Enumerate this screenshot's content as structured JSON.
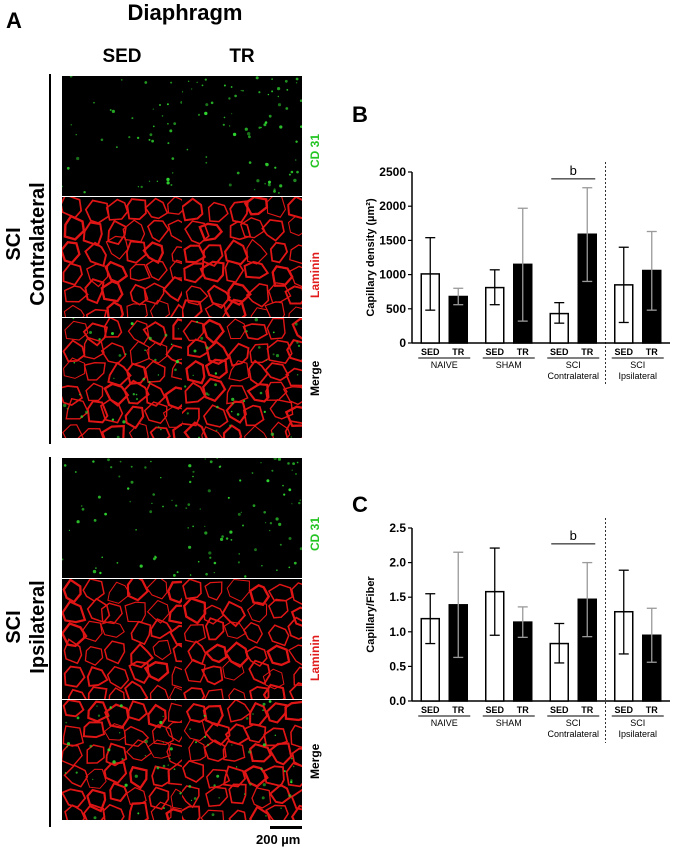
{
  "panel_a": {
    "letter": "A",
    "title": "Diaphragm",
    "col_headers": [
      "SED",
      "TR"
    ],
    "groups": [
      {
        "label_line1": "SCI",
        "label_line2": "Contralateral"
      },
      {
        "label_line1": "SCI",
        "label_line2": "Ipsilateral"
      }
    ],
    "rows": [
      "CD 31",
      "Laminin",
      "Merge"
    ],
    "row_colors": {
      "CD 31": "#22c422",
      "Laminin": "#e11b1b",
      "Merge": "#000000"
    },
    "scale_bar": "200 µm"
  },
  "panel_b": {
    "letter": "B"
  },
  "panel_c": {
    "letter": "C"
  },
  "chart_data": [
    {
      "type": "bar",
      "ylabel": "Capillary density (µm²)",
      "ylim": [
        0,
        2500
      ],
      "yticks": [
        0,
        500,
        1000,
        1500,
        2000,
        2500
      ],
      "categories": [
        "SED",
        "TR",
        "SED",
        "TR",
        "SED",
        "TR",
        "SED",
        "TR"
      ],
      "groups": [
        {
          "line1": "NAIVE",
          "line2": ""
        },
        {
          "line1": "SHAM",
          "line2": ""
        },
        {
          "line1": "SCI",
          "line2": "Contralateral"
        },
        {
          "line1": "SCI",
          "line2": "Ipsilateral"
        }
      ],
      "values": [
        1010,
        680,
        810,
        1150,
        430,
        1590,
        850,
        1060
      ],
      "err_low": [
        480,
        560,
        560,
        320,
        290,
        900,
        300,
        480
      ],
      "err_high": [
        1540,
        800,
        1070,
        1970,
        590,
        2270,
        1400,
        1630
      ],
      "bar_fill": [
        "white",
        "black",
        "white",
        "black",
        "white",
        "black",
        "white",
        "black"
      ],
      "annotation": {
        "text": "b",
        "from_bar": 4,
        "to_bar": 5,
        "at": 2400
      }
    },
    {
      "type": "bar",
      "ylabel": "Capillary/Fiber",
      "ylim": [
        0,
        2.5
      ],
      "yticks": [
        "0.0",
        "0.5",
        "1.0",
        "1.5",
        "2.0",
        "2.5"
      ],
      "categories": [
        "SED",
        "TR",
        "SED",
        "TR",
        "SED",
        "TR",
        "SED",
        "TR"
      ],
      "groups": [
        {
          "line1": "NAIVE",
          "line2": ""
        },
        {
          "line1": "SHAM",
          "line2": ""
        },
        {
          "line1": "SCI",
          "line2": "Contralateral"
        },
        {
          "line1": "SCI",
          "line2": "Ipsilateral"
        }
      ],
      "values": [
        1.19,
        1.39,
        1.58,
        1.14,
        0.83,
        1.47,
        1.29,
        0.95
      ],
      "err_low": [
        0.83,
        0.63,
        0.95,
        0.92,
        0.55,
        0.93,
        0.68,
        0.56
      ],
      "err_high": [
        1.55,
        2.15,
        2.21,
        1.36,
        1.12,
        2.0,
        1.89,
        1.34
      ],
      "bar_fill": [
        "white",
        "black",
        "white",
        "black",
        "white",
        "black",
        "white",
        "black"
      ],
      "annotation": {
        "text": "b",
        "from_bar": 4,
        "to_bar": 5,
        "at": 2.27
      }
    }
  ]
}
